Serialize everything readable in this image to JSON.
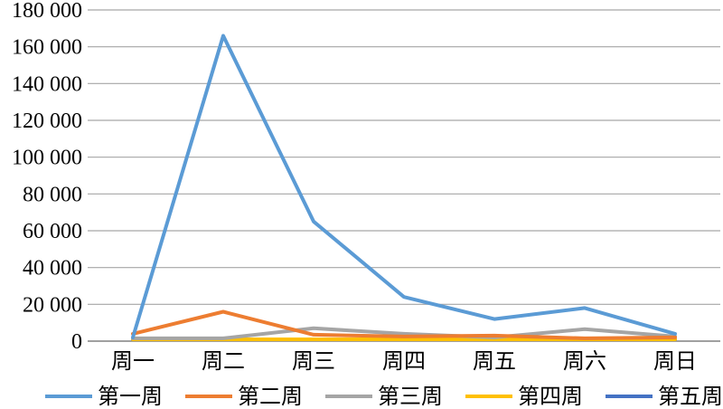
{
  "chart_data": {
    "type": "line",
    "categories": [
      "周一",
      "周二",
      "周三",
      "周四",
      "周五",
      "周六",
      "周日"
    ],
    "y_ticks": [
      "0",
      "20 000",
      "40 000",
      "60 000",
      "80 000",
      "100 000",
      "120 000",
      "140 000",
      "160 000",
      "180 000"
    ],
    "ylim": [
      0,
      180000
    ],
    "grid": true,
    "legend_position": "bottom",
    "series": [
      {
        "name": "第一周",
        "color": "#5b9bd5",
        "values": [
          2000,
          166000,
          65000,
          24000,
          12000,
          18000,
          4000
        ]
      },
      {
        "name": "第二周",
        "color": "#ed7d31",
        "values": [
          4000,
          16000,
          3500,
          2500,
          3000,
          1500,
          2000
        ]
      },
      {
        "name": "第三周",
        "color": "#a5a5a5",
        "values": [
          1500,
          1500,
          7000,
          4000,
          2000,
          6500,
          2500
        ]
      },
      {
        "name": "第四周",
        "color": "#ffc000",
        "values": [
          1000,
          1000,
          1000,
          1000,
          1000,
          1000,
          1000
        ]
      },
      {
        "name": "第五周",
        "color": "#4472c4",
        "values": [
          1000,
          1000,
          1000,
          1000,
          1000,
          1000,
          1000
        ]
      }
    ]
  }
}
